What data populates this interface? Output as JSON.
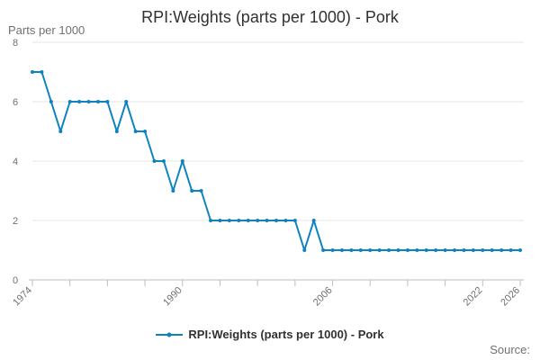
{
  "chart_data": {
    "type": "line",
    "title": "RPI:Weights (parts per 1000) - Pork",
    "ylabel": "Parts per 1000",
    "xlabel": "",
    "ylim": [
      0,
      8
    ],
    "yticks": [
      0,
      2,
      4,
      6,
      8
    ],
    "xlim": [
      1974,
      2026
    ],
    "xtick_labels": [
      "1974",
      "1990",
      "2006",
      "2022",
      "2026"
    ],
    "grid": true,
    "legend": "bottom-center",
    "series": [
      {
        "name": "RPI:Weights (parts per 1000) - Pork",
        "color": "#0f82c0",
        "x": [
          1974,
          1975,
          1976,
          1977,
          1978,
          1979,
          1980,
          1981,
          1982,
          1983,
          1984,
          1985,
          1986,
          1987,
          1988,
          1989,
          1990,
          1991,
          1992,
          1993,
          1994,
          1995,
          1996,
          1997,
          1998,
          1999,
          2000,
          2001,
          2002,
          2003,
          2004,
          2005,
          2006,
          2007,
          2008,
          2009,
          2010,
          2011,
          2012,
          2013,
          2014,
          2015,
          2016,
          2017,
          2018,
          2019,
          2020,
          2021,
          2022,
          2023,
          2024,
          2025,
          2026
        ],
        "values": [
          7,
          7,
          6,
          5,
          6,
          6,
          6,
          6,
          6,
          5,
          6,
          5,
          5,
          4,
          4,
          3,
          4,
          3,
          3,
          2,
          2,
          2,
          2,
          2,
          2,
          2,
          2,
          2,
          2,
          1,
          2,
          1,
          1,
          1,
          1,
          1,
          1,
          1,
          1,
          1,
          1,
          1,
          1,
          1,
          1,
          1,
          1,
          1,
          1,
          1,
          1,
          1,
          1
        ]
      }
    ],
    "source": "Source:"
  }
}
